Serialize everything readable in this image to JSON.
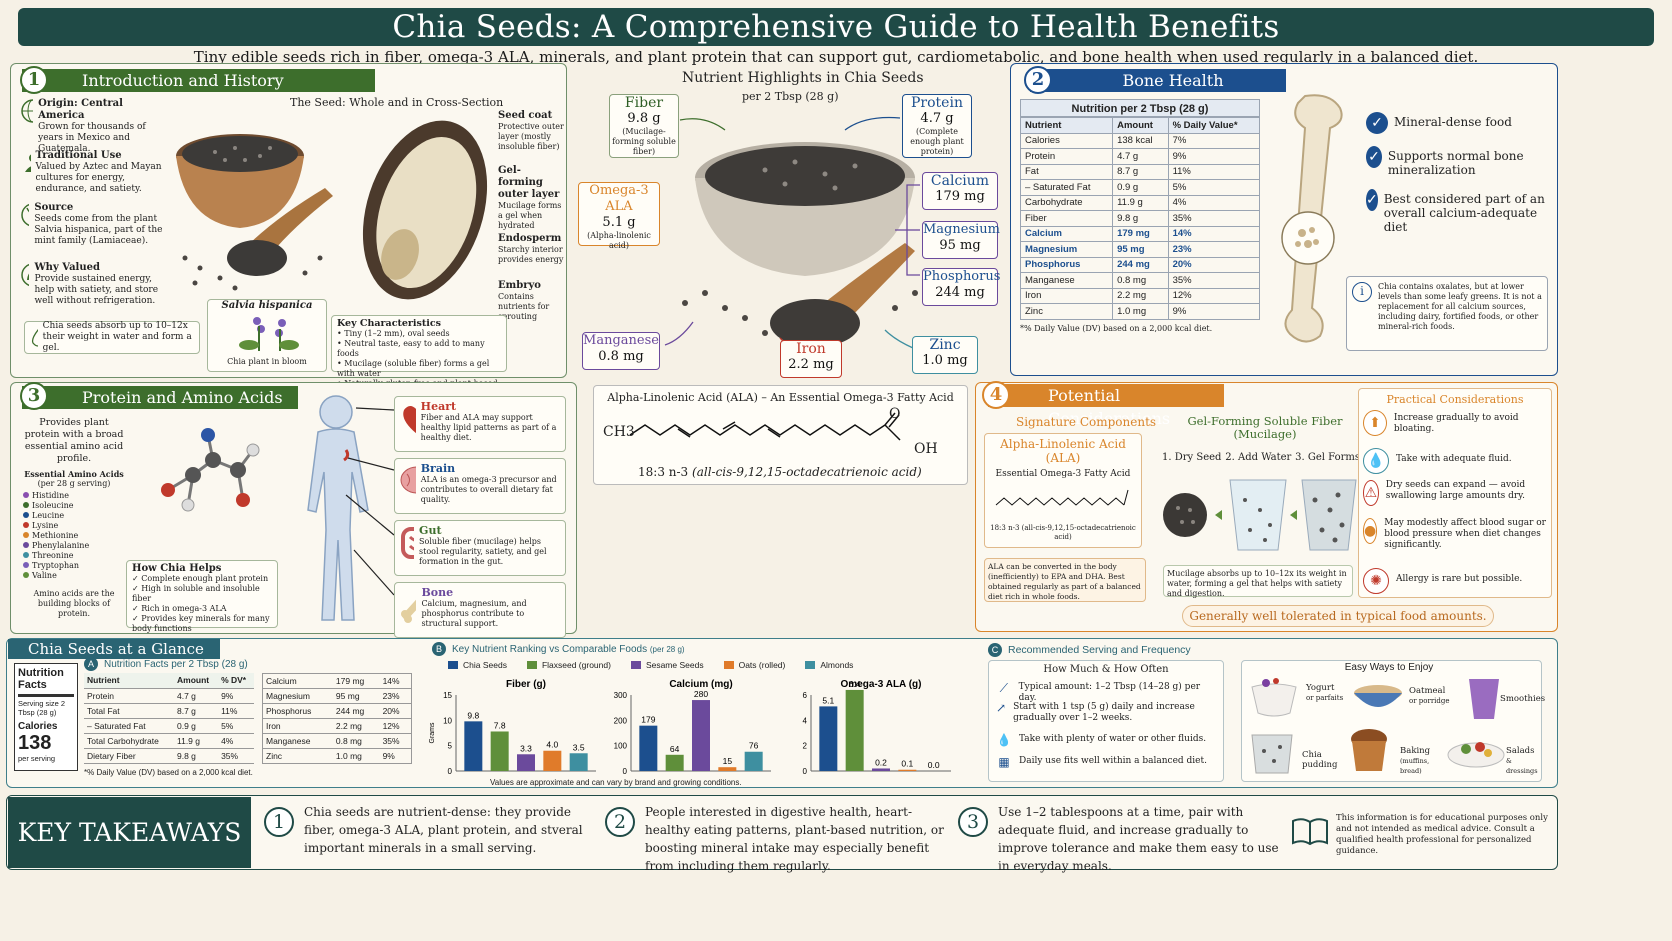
{
  "header": {
    "title": "Chia Seeds: A Comprehensive Guide to Health Benefits",
    "subtitle": "Tiny edible seeds rich in fiber, omega-3 ALA, minerals, and plant protein that can support gut, cardiometabolic, and bone health when used regularly in a balanced diet."
  },
  "intro": {
    "num": "1",
    "title": "Introduction and History",
    "seed_title": "The Seed: Whole and in Cross-Section",
    "items": [
      {
        "icon": "globe-icon",
        "title": "Origin: Central America",
        "text": "Grown for thousands of years in Mexico and Guatemala."
      },
      {
        "icon": "people-icon",
        "title": "Traditional Use",
        "text": "Valued by Aztec and Mayan cultures for energy, endurance, and satiety."
      },
      {
        "icon": "plant-icon",
        "title": "Source",
        "text": "Seeds come from the plant Salvia hispanica, part of the mint family (Lamiaceae)."
      },
      {
        "icon": "leaf-icon",
        "title": "Why Valued",
        "text": "Provide sustained energy, help with satiety, and store well without refrigeration."
      }
    ],
    "absorb_note": "Chia seeds absorb up to 10–12x their weight in water and form a gel.",
    "plant_title": "Salvia hispanica",
    "plant_caption": "Chia plant in bloom",
    "parts": [
      {
        "title": "Seed coat",
        "text": "Protective outer layer (mostly insoluble fiber)"
      },
      {
        "title": "Gel-forming outer layer",
        "text": "Mucilage forms a gel when hydrated"
      },
      {
        "title": "Endosperm",
        "text": "Starchy interior provides energy"
      },
      {
        "title": "Embryo",
        "text": "Contains nutrients for sprouting"
      }
    ],
    "key_title": "Key Characteristics",
    "key_items": [
      "Tiny (1–2 mm), oval seeds",
      "Neutral taste, easy to add to many foods",
      "Mucilage (soluble fiber) forms a gel with water",
      "Naturally gluten-free and plant-based"
    ]
  },
  "highlights": {
    "title": "Nutrient Highlights in Chia Seeds",
    "sub": "per 2 Tbsp (28 g)",
    "fiber": {
      "name": "Fiber",
      "value": "9.8 g",
      "note": "(Mucilage-forming soluble fiber)"
    },
    "protein": {
      "name": "Protein",
      "value": "4.7 g",
      "note": "(Complete enough plant protein)"
    },
    "omega": {
      "name": "Omega-3 ALA",
      "value": "5.1 g",
      "note": "(Alpha-linolenic acid)"
    },
    "calcium": {
      "name": "Calcium",
      "value": "179 mg"
    },
    "magnesium": {
      "name": "Magnesium",
      "value": "95 mg"
    },
    "phosphorus": {
      "name": "Phosphorus",
      "value": "244 mg"
    },
    "manganese": {
      "name": "Manganese",
      "value": "0.8 mg"
    },
    "iron": {
      "name": "Iron",
      "value": "2.2 mg"
    },
    "zinc": {
      "name": "Zinc",
      "value": "1.0 mg"
    }
  },
  "bone": {
    "num": "2",
    "title": "Bone Health",
    "table_title": "Nutrition per 2 Tbsp (28 g)",
    "headers": [
      "Nutrient",
      "Amount",
      "% Daily Value*"
    ],
    "rows": [
      [
        "Calories",
        "138 kcal",
        "7%"
      ],
      [
        "Protein",
        "4.7 g",
        "9%"
      ],
      [
        "Fat",
        "8.7 g",
        "11%"
      ],
      [
        "– Saturated Fat",
        "0.9 g",
        "5%"
      ],
      [
        "Carbohydrate",
        "11.9 g",
        "4%"
      ],
      [
        "Fiber",
        "9.8 g",
        "35%"
      ],
      [
        "Calcium",
        "179 mg",
        "14%"
      ],
      [
        "Magnesium",
        "95 mg",
        "23%"
      ],
      [
        "Phosphorus",
        "244 mg",
        "20%"
      ],
      [
        "Manganese",
        "0.8 mg",
        "35%"
      ],
      [
        "Iron",
        "2.2 mg",
        "12%"
      ],
      [
        "Zinc",
        "1.0 mg",
        "9%"
      ]
    ],
    "footnote": "*% Daily Value (DV) based on a 2,000 kcal diet.",
    "checks": [
      "Mineral-dense food",
      "Supports normal bone mineralization",
      "Best considered part of an overall calcium-adequate diet"
    ],
    "info": "Chia contains oxalates, but at lower levels than some leafy greens. It is not a replacement for all calcium sources, including dairy, fortified foods, or other mineral-rich foods."
  },
  "protein_sec": {
    "num": "3",
    "title": "Protein and Amino Acids",
    "intro": "Provides plant protein with a broad essential amino acid profile.",
    "amino_title": "Essential Amino Acids",
    "amino_sub": "(per 28 g serving)",
    "aminos": [
      "Histidine",
      "Isoleucine",
      "Leucine",
      "Lysine",
      "Methionine",
      "Phenylalanine",
      "Threonine",
      "Tryptophan",
      "Valine"
    ],
    "amino_note": "Amino acids are the building blocks of protein.",
    "help_title": "How Chia Helps",
    "help_items": [
      "Complete enough plant protein",
      "High in soluble and insoluble fiber",
      "Rich in omega-3 ALA",
      "Provides key minerals for many body functions"
    ],
    "organs": [
      {
        "name": "Heart",
        "text": "Fiber and ALA may support healthy lipid patterns as part of a healthy diet."
      },
      {
        "name": "Brain",
        "text": "ALA is an omega-3 precursor and contributes to overall dietary fat quality."
      },
      {
        "name": "Gut",
        "text": "Soluble fiber (mucilage) helps stool regularity, satiety, and gel formation in the gut."
      },
      {
        "name": "Bone",
        "text": "Calcium, magnesium, and phosphorus contribute to structural support."
      }
    ]
  },
  "ala": {
    "title": "Alpha-Linolenic Acid (ALA) – An Essential Omega-3 Fatty Acid",
    "ch3": "CH3",
    "o": "O",
    "oh": "OH",
    "formula": "18:3 n-3",
    "formula_name": "(all-cis-9,12,15-octadecatrienoic acid)"
  },
  "considerations": {
    "num": "4",
    "title": "Potential Considerations",
    "sig_title": "Signature Components",
    "ala_title": "Alpha-Linolenic Acid (ALA)",
    "ala_sub": "Essential Omega-3 Fatty Acid",
    "ala_formula": "18:3 n-3 (all-cis-9,12,15-octadecatrienoic acid)",
    "ala_note": "ALA can be converted in the body (inefficiently) to EPA and DHA. Best obtained regularly as part of a balanced diet rich in whole foods.",
    "gel_title": "Gel-Forming Soluble Fiber (Mucilage)",
    "steps": [
      "1. Dry Seed",
      "2. Add Water",
      "3. Gel Forms"
    ],
    "gel_note": "Mucilage absorbs up to 10–12x its weight in water, forming a gel that helps with satiety and digestion.",
    "practical_title": "Practical Considerations",
    "practical": [
      {
        "icon": "arrow-up-icon",
        "text": "Increase gradually to avoid bloating."
      },
      {
        "icon": "water-drop-icon",
        "text": "Take with adequate fluid."
      },
      {
        "icon": "warning-icon",
        "text": "Dry seeds can expand — avoid swallowing large amounts dry."
      },
      {
        "icon": "blood-drop-icon",
        "text": "May modestly affect blood sugar or blood pressure when diet changes significantly."
      },
      {
        "icon": "allergy-icon",
        "text": "Allergy is rare but possible."
      }
    ],
    "banner": "Generally well tolerated in typical food amounts."
  },
  "glance": {
    "title": "Chia Seeds at a Glance",
    "facts_title": "Nutrition Facts",
    "serving": "Serving size 2 Tbsp (28 g)",
    "calories_label": "Calories",
    "calories": "138",
    "per_serving": "per serving",
    "a_label": "A",
    "a_title": "Nutrition Facts per 2 Tbsp (28 g)",
    "a_headers": [
      "Nutrient",
      "Amount",
      "% DV*"
    ],
    "a_left": [
      [
        "Protein",
        "4.7 g",
        "9%"
      ],
      [
        "Total Fat",
        "8.7 g",
        "11%"
      ],
      [
        "– Saturated Fat",
        "0.9 g",
        "5%"
      ],
      [
        "Total Carbohydrate",
        "11.9 g",
        "4%"
      ],
      [
        "Dietary Fiber",
        "9.8 g",
        "35%"
      ]
    ],
    "a_right": [
      [
        "Calcium",
        "179 mg",
        "14%"
      ],
      [
        "Magnesium",
        "95 mg",
        "23%"
      ],
      [
        "Phosphorus",
        "244 mg",
        "20%"
      ],
      [
        "Iron",
        "2.2 mg",
        "12%"
      ],
      [
        "Manganese",
        "0.8 mg",
        "35%"
      ],
      [
        "Zinc",
        "1.0 mg",
        "9%"
      ]
    ],
    "a_note": "*% Daily Value (DV) based on a 2,000 kcal diet.",
    "b_label": "B",
    "b_title": "Key Nutrient Ranking vs Comparable Foods",
    "b_sub": "(per 28 g)",
    "b_note": "Values are approximate and can vary by brand and growing conditions.",
    "c_label": "C",
    "c_title": "Recommended Serving and Frequency",
    "c_sub": "How Much & How Often",
    "c_items": [
      {
        "icon": "spoon-icon",
        "text": "Typical amount: 1–2 Tbsp (14–28 g) per day."
      },
      {
        "icon": "trend-icon",
        "text": "Start with 1 tsp (5 g) daily and increase gradually over 1–2 weeks."
      },
      {
        "icon": "water-drop-icon",
        "text": "Take with plenty of water or other fluids."
      },
      {
        "icon": "calendar-icon",
        "text": "Daily use fits well within a balanced diet."
      }
    ],
    "ways_title": "Easy Ways to Enjoy",
    "ways": [
      {
        "label": "Yogurt",
        "sub": "or parfaits"
      },
      {
        "label": "Oatmeal",
        "sub": "or porridge"
      },
      {
        "label": "Smoothies",
        "sub": ""
      },
      {
        "label": "Chia pudding",
        "sub": ""
      },
      {
        "label": "Baking",
        "sub": "(muffins, bread)"
      },
      {
        "label": "Salads",
        "sub": "& dressings"
      }
    ]
  },
  "chart_data": [
    {
      "type": "bar",
      "title": "Fiber (g)",
      "ylabel": "Grams",
      "categories": [
        "Chia Seeds",
        "Flaxseed (ground)",
        "Sesame Seeds",
        "Oats (rolled)",
        "Almonds"
      ],
      "values": [
        9.8,
        7.8,
        3.3,
        4.0,
        3.5
      ],
      "ylim": [
        0,
        15
      ],
      "yticks": [
        "0",
        "5",
        "10",
        "15"
      ]
    },
    {
      "type": "bar",
      "title": "Calcium (mg)",
      "categories": [
        "Chia Seeds",
        "Flaxseed (ground)",
        "Sesame Seeds",
        "Oats (rolled)",
        "Almonds"
      ],
      "values": [
        179,
        64,
        280,
        15,
        76
      ],
      "ylim": [
        0,
        300
      ],
      "yticks": [
        "0",
        "100",
        "200",
        "300"
      ]
    },
    {
      "type": "bar",
      "title": "Omega-3 ALA (g)",
      "categories": [
        "Chia Seeds",
        "Flaxseed (ground)",
        "Sesame Seeds",
        "Oats (rolled)",
        "Almonds"
      ],
      "values": [
        5.1,
        6.4,
        0.2,
        0.1,
        0.0
      ],
      "ylim": [
        0,
        6
      ],
      "yticks": [
        "0",
        "2",
        "4",
        "6"
      ]
    }
  ],
  "legend": [
    {
      "name": "Chia Seeds",
      "color": "#1c4f8e"
    },
    {
      "name": "Flaxseed (ground)",
      "color": "#5f8f3a"
    },
    {
      "name": "Sesame Seeds",
      "color": "#6b4a9c"
    },
    {
      "name": "Oats (rolled)",
      "color": "#e07b2a"
    },
    {
      "name": "Almonds",
      "color": "#3e8fa0"
    }
  ],
  "takeaways": {
    "title": "KEY TAKEAWAYS",
    "items": [
      {
        "num": "1",
        "text": "Chia seeds are nutrient-dense: they provide fiber, omega-3 ALA, plant protein, and stveral important minerals in a small serving."
      },
      {
        "num": "2",
        "text": "People interested in digestive health, heart-healthy eating patterns, plant-based nutrition, or boosting mineral intake may especially benefit from including them regularly."
      },
      {
        "num": "3",
        "text": "Use 1–2 tablespoons at a time, pair with adequate fluid, and increase gradually to improve tolerance and make them easy to use in everyday meals."
      }
    ],
    "disclaimer": "This information is for educational purposes only and not intended as medical advice. Consult a qualified health professional for personalized guidance."
  }
}
